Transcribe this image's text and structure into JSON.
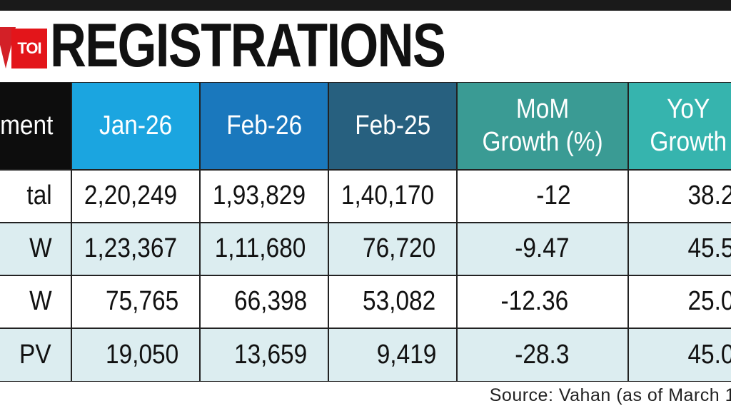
{
  "logo": "TOI",
  "title": "REGISTRATIONS",
  "table": {
    "header": [
      "ment",
      "Jan-26",
      "Feb-26",
      "Feb-25",
      "MoM\nGrowth (%)",
      "YoY\nGrowth"
    ],
    "rows": [
      [
        "tal",
        "2,20,249",
        "1,93,829",
        "1,40,170",
        "-12",
        "38.2"
      ],
      [
        "W",
        "1,23,367",
        "1,11,680",
        "76,720",
        "-9.47",
        "45.5"
      ],
      [
        "W",
        "75,765",
        "66,398",
        "53,082",
        "-12.36",
        "25.0"
      ],
      [
        "PV",
        "19,050",
        "13,659",
        "9,419",
        "-28.3",
        "45.0"
      ]
    ]
  },
  "source": "Source: Vahan (as of March 1"
}
